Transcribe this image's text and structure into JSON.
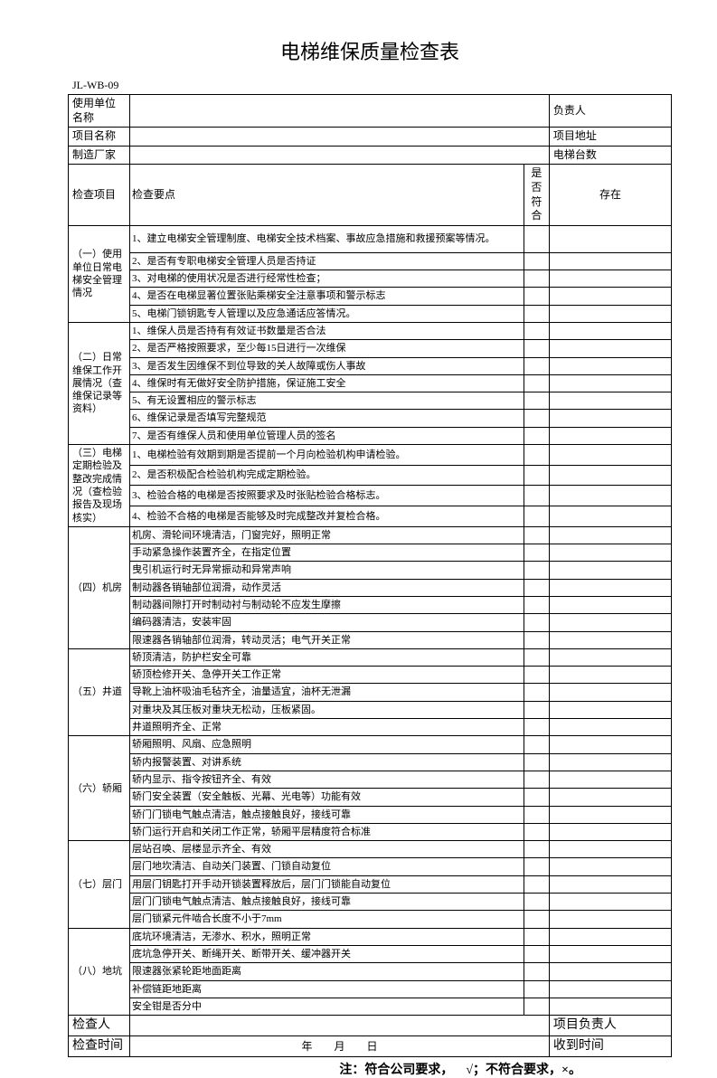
{
  "title": "电梯维保质量检查表",
  "docId": "JL-WB-09",
  "header": {
    "usingUnitLabel": "使用单位名称",
    "projectNameLabel": "项目名称",
    "manufacturerLabel": "制造厂家",
    "responsibleLabel": "负责人",
    "projectAddrLabel": "项目地址",
    "elevatorCountLabel": "电梯台数"
  },
  "columns": {
    "category": "检查项目",
    "detail": "检查要点",
    "conform": "是否符合",
    "issue": "存在"
  },
  "sections": [
    {
      "cat": "（一）使用单位日常电梯安全管理情况",
      "items": [
        "1、建立电梯安全管理制度、电梯安全技术档案、事故应急措施和救援预案等情况。",
        "2、是否有专职电梯安全管理人员是否持证",
        "3、对电梯的使用状况是否进行经常性检查；",
        "4、是否在电梯显著位置张贴乘梯安全注意事项和警示标志",
        "5、电梯门锁钥匙专人管理以及应急通话应答情况。"
      ]
    },
    {
      "cat": "（二）日常维保工作开展情况（查维保记录等资料）",
      "items": [
        "1、维保人员是否持有有效证书数量是否合法",
        "2、是否严格按照要求，至少每15日进行一次维保",
        "3、是否发生因维保不到位导致的关人故障或伤人事故",
        "4、维保时有无做好安全防护措施，保证施工安全",
        "5、有无设置相应的警示标志",
        "6、维保记录是否填写完整规范",
        "7、是否有维保人员和使用单位管理人员的签名"
      ]
    },
    {
      "cat": "（三）电梯定期检验及整改完成情况（查检验报告及现场核实）",
      "items": [
        "1、电梯检验有效期到期是否提前一个月向检验机构申请检验。",
        "2、是否积极配合检验机构完成定期检验。",
        "3、检验合格的电梯是否按照要求及时张贴检验合格标志。",
        "4、检验不合格的电梯是否能够及时完成整改并复检合格。"
      ]
    },
    {
      "cat": "（四）机房",
      "items": [
        "机房、滑轮间环境清洁，门窗完好，照明正常",
        "手动紧急操作装置齐全，在指定位置",
        "曳引机运行时无异常振动和异常声响",
        "制动器各销轴部位润滑，动作灵活",
        "制动器间隙打开时制动衬与制动轮不应发生摩擦",
        "编码器清洁，安装牢固",
        "限速器各销轴部位润滑，转动灵活；电气开关正常"
      ]
    },
    {
      "cat": "（五）井道",
      "items": [
        "轿顶清洁，防护栏安全可靠",
        "轿顶检修开关、急停开关工作正常",
        "导靴上油杯吸油毛毡齐全，油量适宜，油杯无泄漏",
        "对重块及其压板对重块无松动，压板紧固。",
        "井道照明齐全、正常"
      ]
    },
    {
      "cat": "（六）轿厢",
      "items": [
        "轿厢照明、风扇、应急照明",
        "轿内报警装置、对讲系统",
        "轿内显示、指令按钮齐全、有效",
        "轿门安全装置（安全触板、光幕、光电等）功能有效",
        "轿门门锁电气触点清洁，触点接触良好，接线可靠",
        "轿门运行开启和关闭工作正常，轿厢平层精度符合标准"
      ]
    },
    {
      "cat": "（七）层门",
      "items": [
        "层站召唤、层楼显示齐全、有效",
        "层门地坎清洁、自动关门装置、门锁自动复位",
        "用层门钥匙打开手动开锁装置释放后，层门门锁能自动复位",
        "层门门锁电气触点清洁、触点接触良好，接线可靠",
        "层门锁紧元件啮合长度不小于7mm"
      ]
    },
    {
      "cat": "（八）地坑",
      "items": [
        "底坑环境清洁，无渗水、积水，照明正常",
        "底坑急停开关、断绳开关、断带开关、缓冲器开关",
        "限速器张紧轮距地面距离",
        "补偿链距地距离",
        "安全钳是否分中"
      ]
    }
  ],
  "footer": {
    "inspectorLabel": "检查人",
    "projectLeaderLabel": "项目负责人",
    "inspectTimeLabel": "检查时间",
    "dateText": "年  月  日",
    "receiveTimeLabel": "收到时间"
  },
  "note": "注：符合公司要求， √；不符合要求，×。"
}
